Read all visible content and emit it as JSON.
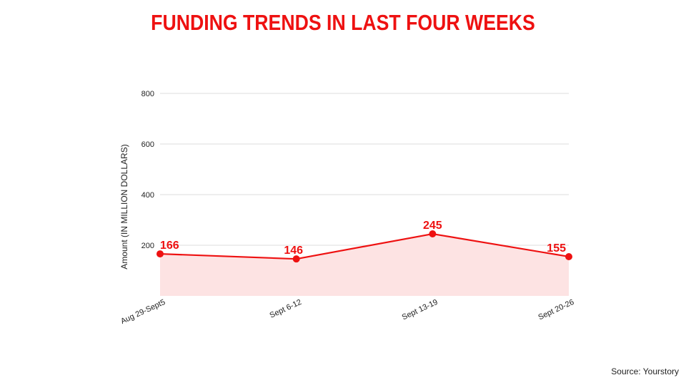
{
  "title": "FUNDING TRENDS IN LAST FOUR WEEKS",
  "source": "Source: Yourstory",
  "colors": {
    "accent": "#ee1111",
    "area_fill": "#fde3e3",
    "grid": "#dddddd"
  },
  "chart_data": {
    "type": "area",
    "title": "FUNDING TRENDS IN LAST FOUR WEEKS",
    "xlabel": "",
    "ylabel": "Amount (IN MILLION DOLLARS)",
    "categories": [
      "Aug 29-Sept5",
      "Sept 6-12",
      "Sept 13-19",
      "Sept 20-26"
    ],
    "values": [
      166,
      146,
      245,
      155
    ],
    "data_labels": [
      "166",
      "146",
      "245",
      "155"
    ],
    "yticks": [
      200,
      400,
      600,
      800
    ],
    "ytick_labels": [
      "200",
      "400",
      "600",
      "800"
    ],
    "ylim": [
      0,
      800
    ],
    "grid": true,
    "legend": "none"
  }
}
